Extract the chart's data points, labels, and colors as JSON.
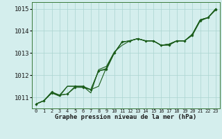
{
  "title": "Graphe pression niveau de la mer (hPa)",
  "ylim": [
    1010.5,
    1015.3
  ],
  "yticks": [
    1011,
    1012,
    1013,
    1014,
    1015
  ],
  "background_color": "#d4eeed",
  "grid_color": "#aad4d0",
  "line_color": "#1a5c1a",
  "n_hours": 24,
  "series": [
    [
      1010.7,
      1010.85,
      1011.25,
      1011.1,
      1011.15,
      1011.5,
      1011.5,
      1011.35,
      1012.2,
      1012.3,
      1013.0,
      1013.5,
      1013.55,
      1013.65,
      1013.55,
      1013.55,
      1013.35,
      1013.4,
      1013.55,
      1013.55,
      1013.85,
      1014.5,
      1014.6,
      1015.0
    ],
    [
      1010.7,
      1010.85,
      1011.2,
      1011.1,
      1011.15,
      1011.45,
      1011.45,
      1011.35,
      1012.2,
      1012.25,
      1013.0,
      1013.5,
      1013.55,
      1013.65,
      1013.55,
      1013.55,
      1013.35,
      1013.35,
      1013.55,
      1013.55,
      1013.8,
      1014.45,
      1014.6,
      1014.95
    ],
    [
      1010.7,
      1010.85,
      1011.2,
      1011.05,
      1011.5,
      1011.5,
      1011.5,
      1011.2,
      1012.25,
      1012.4,
      1013.05,
      1013.35,
      1013.55,
      1013.65,
      1013.55,
      1013.55,
      1013.35,
      1013.4,
      1013.55,
      1013.55,
      1013.85,
      1014.5,
      1014.6,
      1015.0
    ],
    [
      1010.7,
      1010.85,
      1011.2,
      1011.1,
      1011.5,
      1011.5,
      1011.45,
      1011.35,
      1011.5,
      1012.35,
      1013.0,
      1013.5,
      1013.55,
      1013.65,
      1013.55,
      1013.55,
      1013.35,
      1013.4,
      1013.55,
      1013.55,
      1013.85,
      1014.5,
      1014.6,
      1015.0
    ]
  ],
  "has_markers": [
    true,
    true,
    false,
    false
  ],
  "ylabel_fontsize": 6.5,
  "xlabel_fontsize": 6.5,
  "xtick_fontsize": 5.0
}
